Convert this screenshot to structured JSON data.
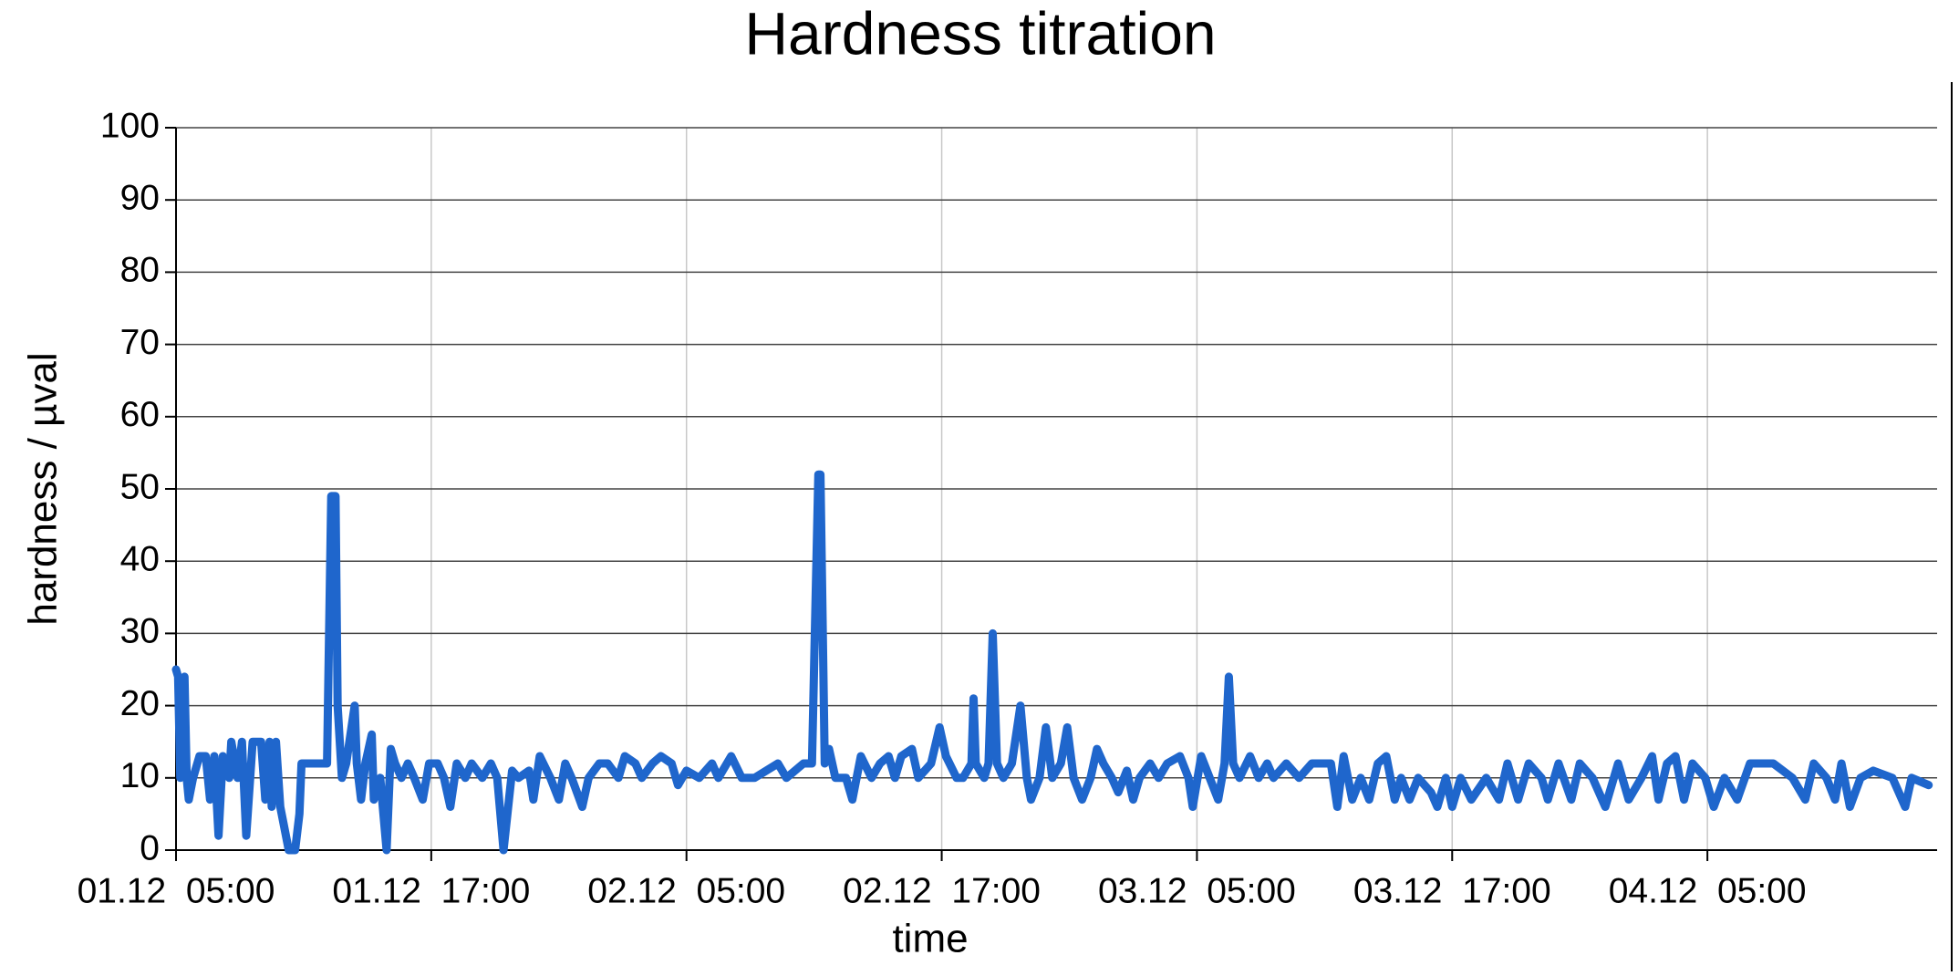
{
  "chart_data": {
    "type": "line",
    "title": "Hardness titration",
    "x_label": "time",
    "y_label": "hardness / µval",
    "color": "#1f66cc",
    "grid": true,
    "xlim": [
      5,
      87.8
    ],
    "xticks": [
      {
        "value": 5,
        "label": "01.12  05:00"
      },
      {
        "value": 17,
        "label": "01.12  17:00"
      },
      {
        "value": 29,
        "label": "02.12  05:00"
      },
      {
        "value": 41,
        "label": "02.12  17:00"
      },
      {
        "value": 53,
        "label": "03.12  05:00"
      },
      {
        "value": 65,
        "label": "03.12  17:00"
      },
      {
        "value": 77,
        "label": "04.12  05:00"
      }
    ],
    "ylim": [
      0,
      100
    ],
    "yticks": [
      0,
      10,
      20,
      30,
      40,
      50,
      60,
      70,
      80,
      90,
      100
    ],
    "x": [
      5.0,
      5.1,
      5.2,
      5.4,
      5.5,
      5.6,
      5.8,
      6.1,
      6.4,
      6.6,
      6.8,
      7.0,
      7.2,
      7.5,
      7.6,
      7.9,
      8.1,
      8.3,
      8.6,
      9.0,
      9.2,
      9.4,
      9.5,
      9.7,
      9.9,
      10.3,
      10.6,
      10.8,
      10.9,
      12.1,
      12.3,
      12.5,
      12.6,
      12.8,
      13.0,
      13.4,
      13.5,
      13.7,
      13.9,
      14.2,
      14.3,
      14.6,
      14.9,
      15.1,
      15.3,
      15.6,
      15.9,
      16.2,
      16.6,
      16.9,
      17.3,
      17.6,
      17.9,
      18.2,
      18.6,
      18.9,
      19.4,
      19.8,
      20.1,
      20.4,
      20.8,
      21.1,
      21.6,
      21.8,
      22.1,
      22.6,
      23.0,
      23.3,
      23.6,
      24.1,
      24.4,
      24.9,
      25.3,
      25.8,
      26.1,
      26.6,
      26.9,
      27.4,
      27.8,
      28.3,
      28.6,
      29.0,
      29.6,
      30.2,
      30.5,
      31.1,
      31.6,
      32.2,
      33.3,
      33.7,
      34.5,
      34.9,
      35.2,
      35.3,
      35.5,
      35.7,
      36.0,
      36.5,
      36.8,
      37.2,
      37.7,
      38.1,
      38.5,
      38.8,
      39.1,
      39.6,
      39.9,
      40.5,
      40.9,
      41.2,
      41.7,
      42.0,
      42.4,
      42.5,
      42.6,
      43.0,
      43.2,
      43.4,
      43.6,
      43.9,
      44.3,
      44.7,
      45.0,
      45.2,
      45.6,
      45.9,
      46.2,
      46.6,
      46.9,
      47.2,
      47.6,
      48.0,
      48.3,
      48.6,
      49.0,
      49.3,
      49.7,
      50.0,
      50.3,
      50.8,
      51.2,
      51.6,
      52.2,
      52.6,
      52.8,
      53.2,
      53.6,
      54.0,
      54.3,
      54.5,
      54.7,
      55.0,
      55.5,
      55.9,
      56.3,
      56.6,
      57.2,
      57.8,
      58.4,
      59.3,
      59.6,
      59.9,
      60.3,
      60.7,
      61.1,
      61.5,
      61.9,
      62.3,
      62.6,
      63.0,
      63.4,
      64.0,
      64.3,
      64.7,
      65.0,
      65.4,
      65.9,
      66.6,
      67.2,
      67.6,
      68.1,
      68.6,
      69.2,
      69.5,
      70.0,
      70.6,
      71.0,
      71.6,
      72.2,
      72.8,
      73.3,
      73.9,
      74.4,
      74.7,
      75.1,
      75.5,
      75.9,
      76.3,
      76.9,
      77.3,
      77.8,
      78.4,
      79.0,
      80.1,
      81.0,
      81.6,
      82.0,
      82.6,
      83.0,
      83.3,
      83.7,
      84.2,
      84.8,
      85.7,
      86.3,
      86.6,
      87.4
    ],
    "values": [
      25,
      24,
      10,
      24,
      10,
      7,
      10,
      13,
      13,
      7,
      13,
      2,
      13,
      10,
      15,
      10,
      15,
      2,
      15,
      15,
      7,
      15,
      6,
      15,
      6,
      0,
      0,
      5,
      12,
      12,
      49,
      49,
      20,
      10,
      12,
      20,
      12,
      7,
      12,
      16,
      7,
      10,
      0,
      14,
      12,
      10,
      12,
      10,
      7,
      12,
      12,
      10,
      6,
      12,
      10,
      12,
      10,
      12,
      10,
      0,
      11,
      10,
      11,
      7,
      13,
      10,
      7,
      12,
      10,
      6,
      10,
      12,
      12,
      10,
      13,
      12,
      10,
      12,
      13,
      12,
      9,
      11,
      10,
      12,
      10,
      13,
      10,
      10,
      12,
      10,
      12,
      12,
      52,
      52,
      12,
      14,
      10,
      10,
      7,
      13,
      10,
      12,
      13,
      10,
      13,
      14,
      10,
      12,
      17,
      13,
      10,
      10,
      12,
      21,
      12,
      10,
      12,
      30,
      12,
      10,
      12,
      20,
      10,
      7,
      10,
      17,
      10,
      12,
      17,
      10,
      7,
      10,
      14,
      12,
      10,
      8,
      11,
      7,
      10,
      12,
      10,
      12,
      13,
      10,
      6,
      13,
      10,
      7,
      12,
      24,
      12,
      10,
      13,
      10,
      12,
      10,
      12,
      10,
      12,
      12,
      6,
      13,
      7,
      10,
      7,
      12,
      13,
      7,
      10,
      7,
      10,
      8,
      6,
      10,
      6,
      10,
      7,
      10,
      7,
      12,
      7,
      12,
      10,
      7,
      12,
      7,
      12,
      10,
      6,
      12,
      7,
      10,
      13,
      7,
      12,
      13,
      7,
      12,
      10,
      6,
      10,
      7,
      12,
      12,
      10,
      7,
      12,
      10,
      7,
      12,
      6,
      10,
      11,
      10,
      6,
      10,
      9
    ]
  }
}
